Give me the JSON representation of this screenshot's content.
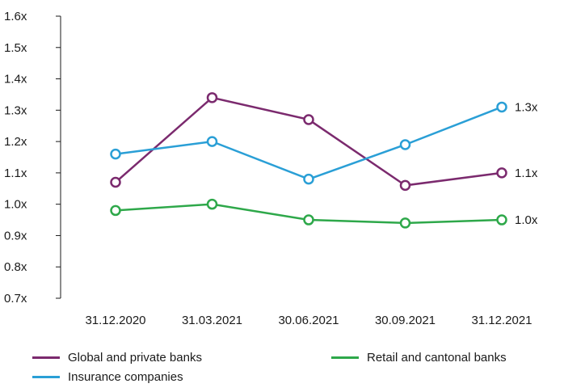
{
  "chart_data": {
    "type": "line",
    "categories": [
      "31.12.2020",
      "31.03.2021",
      "30.06.2021",
      "30.09.2021",
      "31.12.2021"
    ],
    "y_ticks": [
      "0.7x",
      "0.8x",
      "0.9x",
      "1.0x",
      "1.1x",
      "1.2x",
      "1.3x",
      "1.4x",
      "1.5x",
      "1.6x"
    ],
    "ylim": [
      0.7,
      1.6
    ],
    "grid": false,
    "legend_position": "bottom",
    "series": [
      {
        "name": "Global and private banks",
        "color": "#7b2a6e",
        "values": [
          1.07,
          1.34,
          1.27,
          1.06,
          1.1
        ],
        "end_label": "1.1x"
      },
      {
        "name": "Insurance companies",
        "color": "#2a9fd6",
        "values": [
          1.16,
          1.2,
          1.08,
          1.19,
          1.31
        ],
        "end_label": "1.3x"
      },
      {
        "name": "Retail and cantonal banks",
        "color": "#2ea84a",
        "values": [
          0.98,
          1.0,
          0.95,
          0.94,
          0.95
        ],
        "end_label": "1.0x"
      }
    ]
  }
}
